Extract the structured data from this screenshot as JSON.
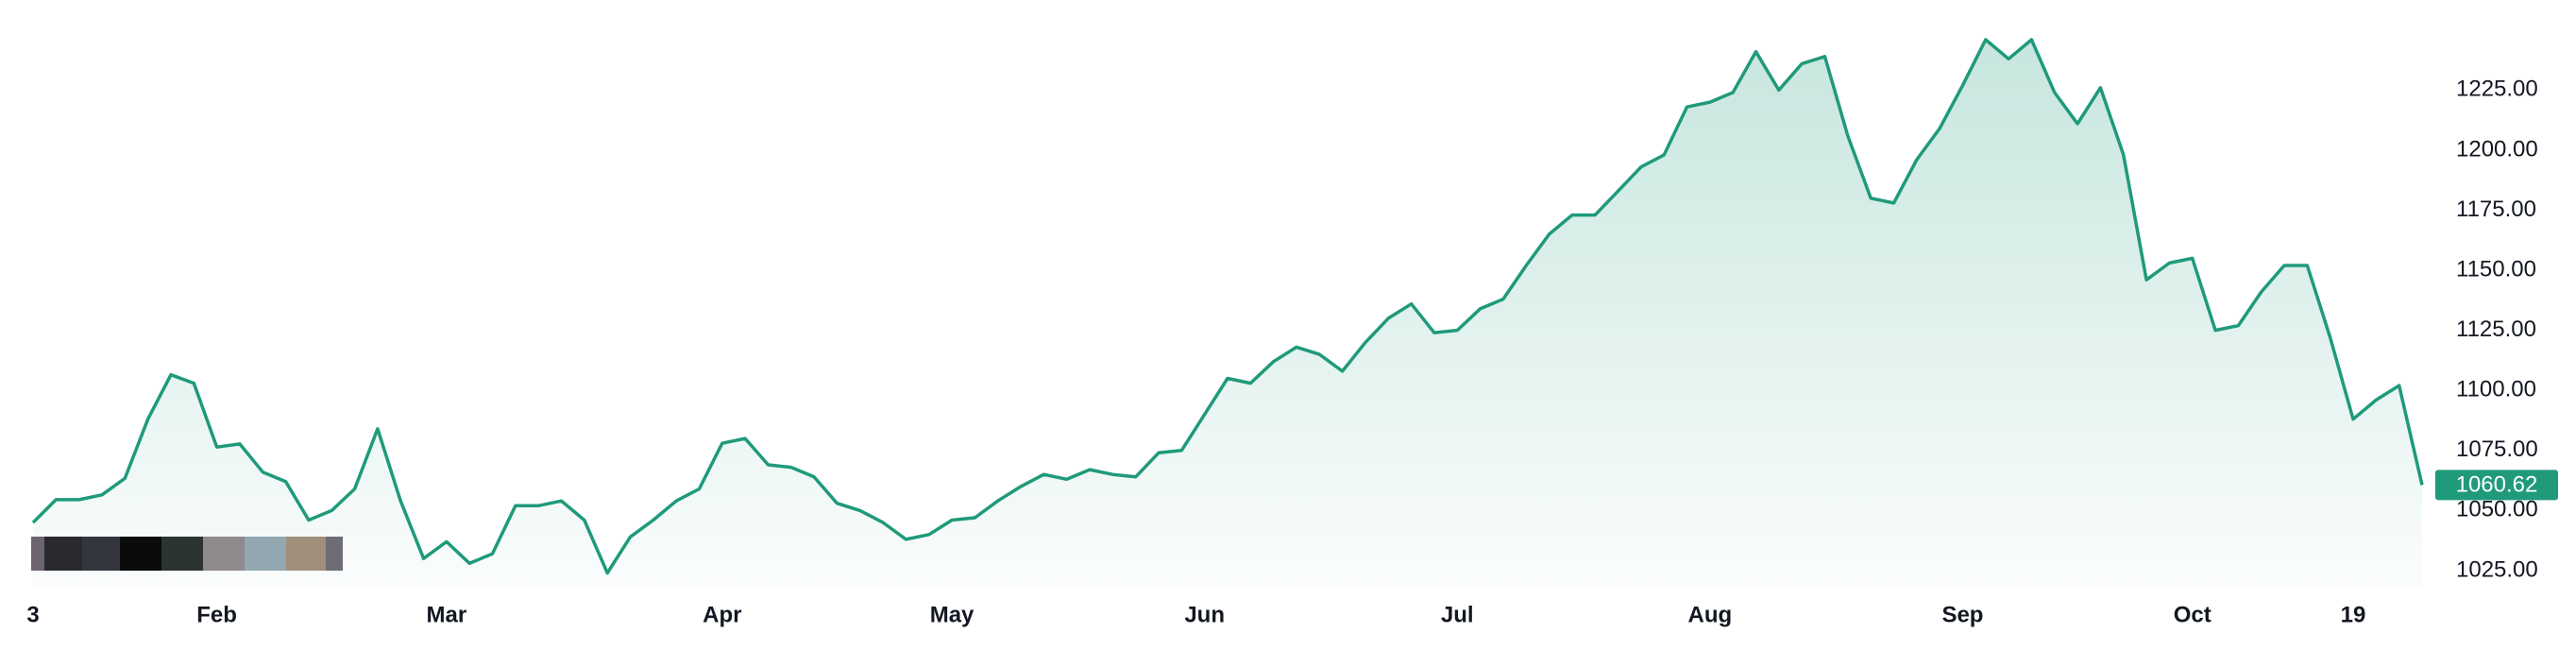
{
  "chart_data": {
    "type": "area",
    "categories": [
      "3",
      null,
      null,
      null,
      null,
      null,
      null,
      null,
      "Feb",
      null,
      null,
      null,
      null,
      null,
      null,
      null,
      null,
      null,
      "Mar",
      null,
      null,
      null,
      null,
      null,
      null,
      null,
      null,
      null,
      null,
      null,
      "Apr",
      null,
      null,
      null,
      null,
      null,
      null,
      null,
      null,
      null,
      "May",
      null,
      null,
      null,
      null,
      null,
      null,
      null,
      null,
      null,
      null,
      "Jun",
      null,
      null,
      null,
      null,
      null,
      null,
      null,
      null,
      null,
      null,
      "Jul",
      null,
      null,
      null,
      null,
      null,
      null,
      null,
      null,
      null,
      null,
      "Aug",
      null,
      null,
      null,
      null,
      null,
      null,
      null,
      null,
      null,
      null,
      "Sep",
      null,
      null,
      null,
      null,
      null,
      null,
      null,
      null,
      null,
      "Oct",
      null,
      null,
      null,
      null,
      null,
      null,
      "19",
      null,
      null,
      null
    ],
    "values": [
      1045,
      1054.5,
      1054.5,
      1056.5,
      1063.4,
      1088,
      1106.5,
      1103,
      1076.4,
      1077.7,
      1066,
      1062,
      1046,
      1050,
      1059,
      1084,
      1054,
      1030,
      1037,
      1028,
      1032,
      1052,
      1052,
      1054,
      1046,
      1024,
      1039,
      1046,
      1054,
      1059,
      1078,
      1080,
      1069,
      1068,
      1064,
      1053,
      1050,
      1045,
      1038,
      1040,
      1046,
      1047,
      1054,
      1060,
      1065,
      1063,
      1067,
      1065,
      1064,
      1074,
      1075,
      1090,
      1105,
      1103,
      1112,
      1118,
      1115,
      1108,
      1120,
      1130,
      1136,
      1124,
      1125,
      1134,
      1138,
      1152,
      1165,
      1173,
      1173,
      1183,
      1193,
      1198,
      1218,
      1220,
      1224,
      1241,
      1225,
      1236,
      1239,
      1206,
      1180,
      1178,
      1196,
      1209,
      1227,
      1246,
      1238,
      1246,
      1224,
      1211,
      1226,
      1198,
      1146,
      1153,
      1155,
      1125,
      1127,
      1141,
      1152,
      1152,
      1122,
      1088,
      1096,
      1102,
      1060.62
    ],
    "color": "#1f9a7b",
    "ylim": [
      1017.5,
      1262.5
    ],
    "yticks": [
      {
        "value": 1025,
        "label": "1025.00"
      },
      {
        "value": 1050,
        "label": "1050.00"
      },
      {
        "value": 1075,
        "label": "1075.00"
      },
      {
        "value": 1100,
        "label": "1100.00"
      },
      {
        "value": 1125,
        "label": "1125.00"
      },
      {
        "value": 1150,
        "label": "1150.00"
      },
      {
        "value": 1175,
        "label": "1175.00"
      },
      {
        "value": 1200,
        "label": "1200.00"
      },
      {
        "value": 1225,
        "label": "1225.00"
      }
    ]
  }
}
